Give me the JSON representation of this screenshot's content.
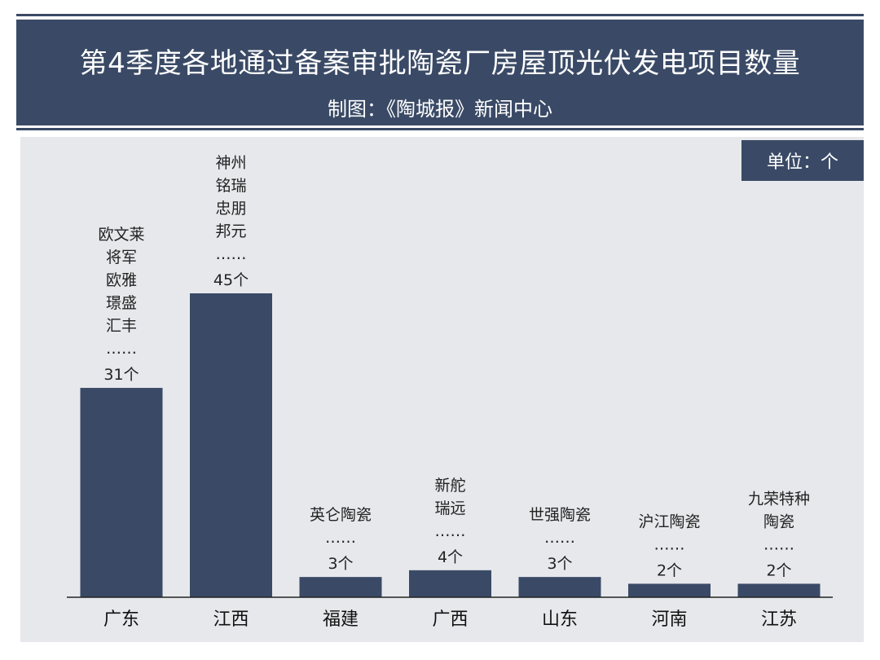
{
  "header": {
    "title": "第4季度各地通过备案审批陶瓷厂房屋顶光伏发电项目数量",
    "subtitle": "制图：《陶城报》新闻中心"
  },
  "unit_label": "单位：个",
  "colors": {
    "bar": "#3a4a66",
    "panel": "#e7e8ec"
  },
  "chart_data": {
    "type": "bar",
    "title": "第4季度各地通过备案审批陶瓷厂房屋顶光伏发电项目数量",
    "categories": [
      "广东",
      "江西",
      "福建",
      "广西",
      "山东",
      "河南",
      "江苏"
    ],
    "values": [
      31,
      45,
      3,
      4,
      3,
      2,
      2
    ],
    "value_labels": [
      "31个",
      "45个",
      "3个",
      "4个",
      "3个",
      "2个",
      "2个"
    ],
    "annotations": [
      [
        "欧文莱",
        "将军",
        "欧雅",
        "璟盛",
        "汇丰",
        "……"
      ],
      [
        "神州",
        "铭瑞",
        "忠朋",
        "邦元",
        "……"
      ],
      [
        "英仑陶瓷",
        "……"
      ],
      [
        "新舵",
        "瑞远",
        "……"
      ],
      [
        "世强陶瓷",
        "……"
      ],
      [
        "沪江陶瓷",
        "……"
      ],
      [
        "九荣特种",
        "陶瓷",
        "……"
      ]
    ],
    "ylim": [
      0,
      45
    ]
  }
}
